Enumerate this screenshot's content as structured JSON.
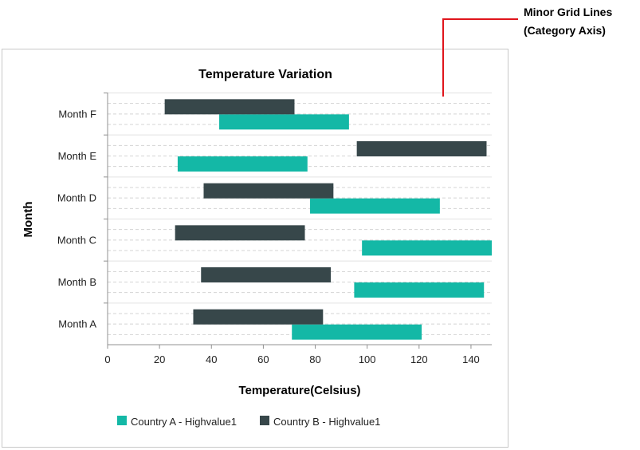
{
  "annotation": {
    "line1": "Minor Grid Lines",
    "line2": "(Category Axis)",
    "color": "#e0151c"
  },
  "chart_data": {
    "type": "range-bar",
    "orientation": "horizontal",
    "title": "Temperature Variation",
    "xlabel": "Temperature(Celsius)",
    "ylabel": "Month",
    "categories": [
      "Month A",
      "Month B",
      "Month C",
      "Month D",
      "Month E",
      "Month F"
    ],
    "xlim": [
      0,
      148
    ],
    "xticks": [
      0,
      20,
      40,
      60,
      80,
      100,
      120,
      140
    ],
    "grid": "minor dashed gridlines on category axis",
    "legend_position": "bottom",
    "series": [
      {
        "name": "Country A - Highvalue1",
        "color": "#14b8a6",
        "ranges": [
          [
            71,
            121
          ],
          [
            95,
            145
          ],
          [
            98,
            148
          ],
          [
            78,
            128
          ],
          [
            27,
            77
          ],
          [
            43,
            93
          ]
        ]
      },
      {
        "name": "Country B - Highvalue1",
        "color": "#37474a",
        "ranges": [
          [
            33,
            83
          ],
          [
            36,
            86
          ],
          [
            26,
            76
          ],
          [
            37,
            87
          ],
          [
            96,
            146
          ],
          [
            22,
            72
          ]
        ]
      }
    ]
  }
}
